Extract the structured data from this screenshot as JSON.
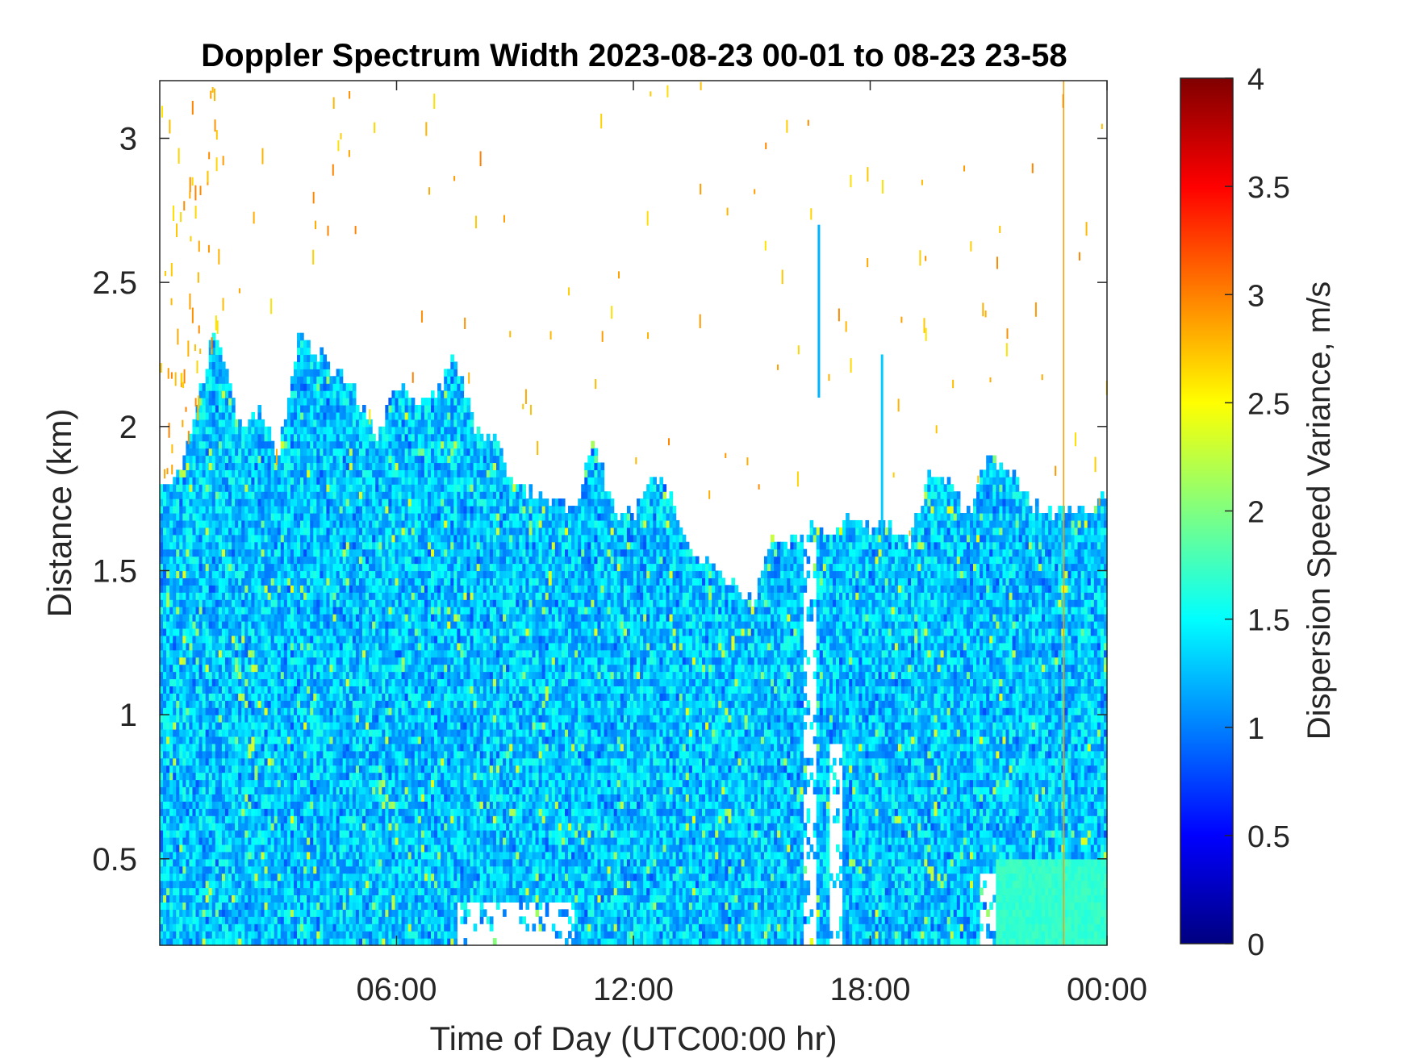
{
  "chart_data": {
    "type": "heatmap",
    "title": "Doppler Spectrum Width 2023-08-23 00-01 to 08-23 23-58",
    "xlabel": "Time of Day (UTC00:00 hr)",
    "ylabel": "Distance (km)",
    "colorbar_label": "Dispersion Speed Variance, m/s",
    "colormap": "jet",
    "xlim_hours": [
      0,
      24
    ],
    "ylim_km": [
      0.2,
      3.2
    ],
    "clim": [
      0,
      4
    ],
    "xticks": [
      {
        "hour": 6,
        "label": "06:00"
      },
      {
        "hour": 12,
        "label": "12:00"
      },
      {
        "hour": 18,
        "label": "18:00"
      },
      {
        "hour": 24,
        "label": "00:00"
      }
    ],
    "yticks": [
      {
        "km": 0.5,
        "label": "0.5"
      },
      {
        "km": 1,
        "label": "1"
      },
      {
        "km": 1.5,
        "label": "1.5"
      },
      {
        "km": 2,
        "label": "2"
      },
      {
        "km": 2.5,
        "label": "2.5"
      },
      {
        "km": 3,
        "label": "3"
      }
    ],
    "colorbar_ticks": [
      {
        "value": 0,
        "label": "0"
      },
      {
        "value": 0.5,
        "label": "0.5"
      },
      {
        "value": 1,
        "label": "1"
      },
      {
        "value": 1.5,
        "label": "1.5"
      },
      {
        "value": 2,
        "label": "2"
      },
      {
        "value": 2.5,
        "label": "2.5"
      },
      {
        "value": 3,
        "label": "3"
      },
      {
        "value": 3.5,
        "label": "3.5"
      },
      {
        "value": 4,
        "label": "4"
      }
    ],
    "typical_value_ms": 1.3,
    "signal_top_km": {
      "hour": [
        0,
        0.5,
        1,
        1.4,
        1.6,
        2,
        2.5,
        3,
        3.5,
        4,
        4.5,
        5,
        5.5,
        6,
        6.5,
        7,
        7.5,
        8,
        8.5,
        9,
        9.5,
        10,
        10.5,
        11,
        11.5,
        12,
        12.5,
        13,
        13.5,
        14,
        14.5,
        15,
        15.5,
        16,
        16.5,
        17,
        17.5,
        18,
        18.5,
        19,
        19.5,
        20,
        20.5,
        21,
        21.5,
        22,
        22.5,
        23,
        23.5,
        24
      ],
      "top": [
        1.8,
        1.85,
        2.1,
        2.35,
        2.25,
        2.0,
        2.05,
        1.9,
        2.3,
        2.25,
        2.2,
        2.1,
        1.95,
        2.15,
        2.1,
        2.1,
        2.25,
        2.0,
        1.95,
        1.8,
        1.75,
        1.75,
        1.7,
        1.95,
        1.7,
        1.7,
        1.85,
        1.75,
        1.55,
        1.55,
        1.45,
        1.4,
        1.6,
        1.6,
        1.65,
        1.6,
        1.7,
        1.65,
        1.65,
        1.6,
        1.85,
        1.8,
        1.7,
        1.9,
        1.85,
        1.75,
        1.7,
        1.7,
        1.7,
        1.75
      ]
    },
    "low_gaps": [
      {
        "hour_start": 7.5,
        "hour_end": 10.5,
        "km_start": 0.2,
        "km_end": 0.35
      },
      {
        "hour_start": 16.3,
        "hour_end": 16.6,
        "km_start": 0.2,
        "km_end": 1.6
      },
      {
        "hour_start": 17.0,
        "hour_end": 17.3,
        "km_start": 0.2,
        "km_end": 0.9
      },
      {
        "hour_start": 20.8,
        "hour_end": 21.2,
        "km_start": 0.2,
        "km_end": 0.45
      }
    ],
    "smooth_region": {
      "hour_start": 21.2,
      "hour_end": 24,
      "km_start": 0.2,
      "km_end": 0.5,
      "value_ms": 1.7
    },
    "spikes": [
      {
        "hour": 16.7,
        "km_start": 2.1,
        "km_end": 2.7,
        "value_ms": 1.2
      },
      {
        "hour": 18.3,
        "km_start": 1.6,
        "km_end": 2.25,
        "value_ms": 1.3
      }
    ],
    "vertical_line": {
      "hour": 22.9,
      "value_ms": 2.9
    }
  }
}
